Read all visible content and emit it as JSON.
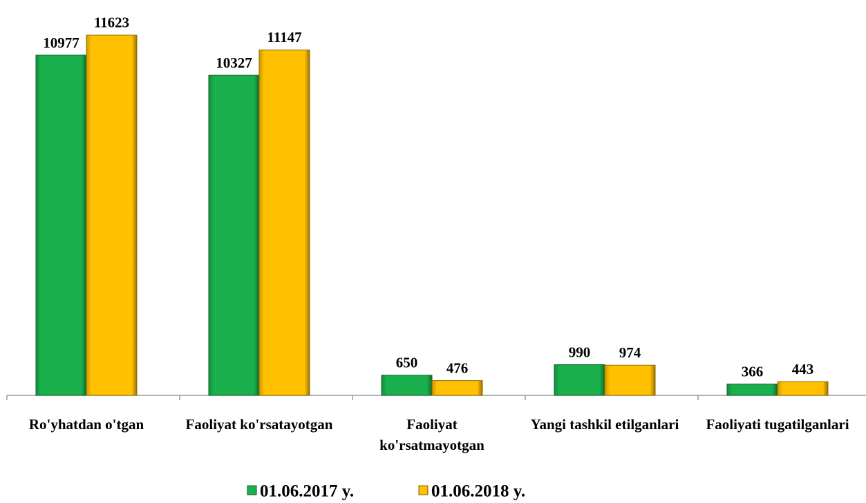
{
  "chart_data": {
    "type": "bar",
    "categories": [
      "Ro'yhatdan o'tgan",
      "Faoliyat ko'rsatayotgan",
      "Faoliyat ko'rsatmayotgan",
      "Yangi tashkil etilganlari",
      "Faoliyati tugatilganlari"
    ],
    "series": [
      {
        "name": "01.06.2017 y.",
        "color": "#19b04b",
        "values": [
          10977,
          10327,
          650,
          990,
          366
        ]
      },
      {
        "name": "01.06.2018 y.",
        "color": "#ffc000",
        "values": [
          11623,
          11147,
          476,
          974,
          443
        ]
      }
    ],
    "ylim": [
      0,
      12000
    ],
    "grid": false,
    "legend": "bottom"
  }
}
